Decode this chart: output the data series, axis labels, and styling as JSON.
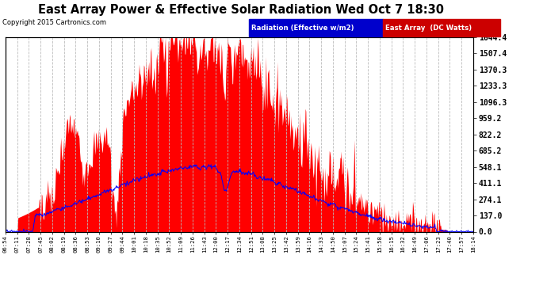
{
  "title": "East Array Power & Effective Solar Radiation Wed Oct 7 18:30",
  "copyright": "Copyright 2015 Cartronics.com",
  "legend_labels": [
    "Radiation (Effective w/m2)",
    "East Array  (DC Watts)"
  ],
  "legend_colors": [
    "#0000ff",
    "#ff0000"
  ],
  "yticks": [
    0.0,
    137.0,
    274.1,
    411.1,
    548.1,
    685.2,
    822.2,
    959.2,
    1096.3,
    1233.3,
    1370.3,
    1507.4,
    1644.4
  ],
  "ymax": 1644.4,
  "bg_color": "#ffffff",
  "plot_bg_color": "#ffffff",
  "grid_color": "#bbbbbb",
  "fill_color": "#ff0000",
  "line_color": "#0000ff",
  "x_tick_labels": [
    "06:54",
    "07:11",
    "07:28",
    "07:45",
    "08:02",
    "08:19",
    "08:36",
    "08:53",
    "09:10",
    "09:27",
    "09:44",
    "10:01",
    "10:18",
    "10:35",
    "10:52",
    "11:09",
    "11:26",
    "11:43",
    "12:00",
    "12:17",
    "12:34",
    "12:51",
    "13:08",
    "13:25",
    "13:42",
    "13:59",
    "14:16",
    "14:33",
    "14:50",
    "15:07",
    "15:24",
    "15:41",
    "15:58",
    "16:15",
    "16:32",
    "16:49",
    "17:06",
    "17:23",
    "17:40",
    "17:57",
    "18:14"
  ],
  "radiation_max": 548.1,
  "power_max": 1644.4
}
